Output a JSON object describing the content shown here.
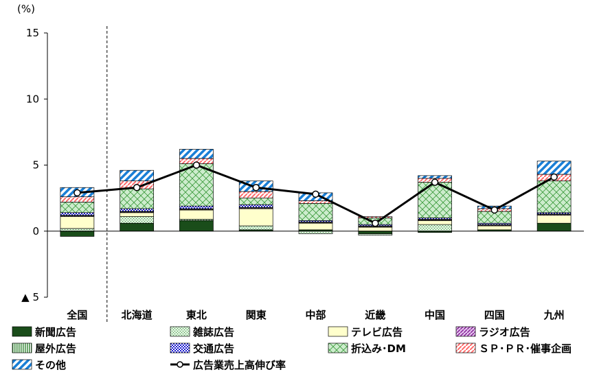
{
  "chart_data": {
    "type": "bar",
    "stacked": true,
    "unit_label": "(%)",
    "ylim": [
      -5,
      15
    ],
    "yticks": [
      15,
      10,
      5,
      0,
      -5
    ],
    "ytick_labels": [
      "15",
      "10",
      "5",
      "0",
      "▲ 5"
    ],
    "categories": [
      "全国",
      "北海道",
      "東北",
      "関東",
      "中部",
      "近畿",
      "中国",
      "四国",
      "九州"
    ],
    "series": [
      {
        "name": "新聞広告",
        "color": "#1a4d1a",
        "values": [
          -0.4,
          0.6,
          0.8,
          0.1,
          0.1,
          -0.2,
          -0.1,
          0.1,
          0.6
        ]
      },
      {
        "name": "雑誌広告",
        "color": "#c8e6c8",
        "values": [
          0.2,
          0.5,
          0.1,
          0.3,
          -0.2,
          -0.1,
          0.5,
          0.0,
          0.0
        ]
      },
      {
        "name": "テレビ広告",
        "color": "#ffffcc",
        "values": [
          0.9,
          0.3,
          0.7,
          1.3,
          0.5,
          0.3,
          0.3,
          0.3,
          0.6
        ]
      },
      {
        "name": "ラジオ広告",
        "color": "#b060b0",
        "values": [
          0.05,
          0.05,
          0.05,
          0.05,
          0.05,
          0.05,
          0.05,
          0.05,
          0.05
        ]
      },
      {
        "name": "屋外広告",
        "color": "#7ab87a",
        "values": [
          0.05,
          0.05,
          0.05,
          0.05,
          0.05,
          0.05,
          0.05,
          0.05,
          0.05
        ]
      },
      {
        "name": "交通広告",
        "color": "#2020cc",
        "values": [
          0.2,
          0.2,
          0.2,
          0.2,
          0.1,
          0.1,
          0.1,
          0.1,
          0.1
        ]
      },
      {
        "name": "折込み･DM",
        "color": "#c8ecc8",
        "values": [
          0.8,
          1.5,
          3.2,
          0.5,
          1.3,
          0.5,
          2.7,
          0.9,
          2.4
        ]
      },
      {
        "name": "ＳＰ･ＰＲ･催事企画",
        "color": "#ff9a9a",
        "values": [
          0.4,
          0.6,
          0.4,
          0.5,
          0.2,
          0.1,
          0.3,
          0.2,
          0.5
        ]
      },
      {
        "name": "その他",
        "color": "#1a7fd6",
        "values": [
          0.7,
          0.8,
          0.7,
          0.8,
          0.6,
          0.0,
          0.2,
          0.2,
          1.0
        ]
      }
    ],
    "line": {
      "name": "広告業売上高伸び率",
      "values": [
        2.9,
        3.3,
        5.0,
        3.3,
        2.8,
        0.6,
        3.7,
        1.6,
        4.1
      ]
    },
    "divider_after_index": 0
  }
}
